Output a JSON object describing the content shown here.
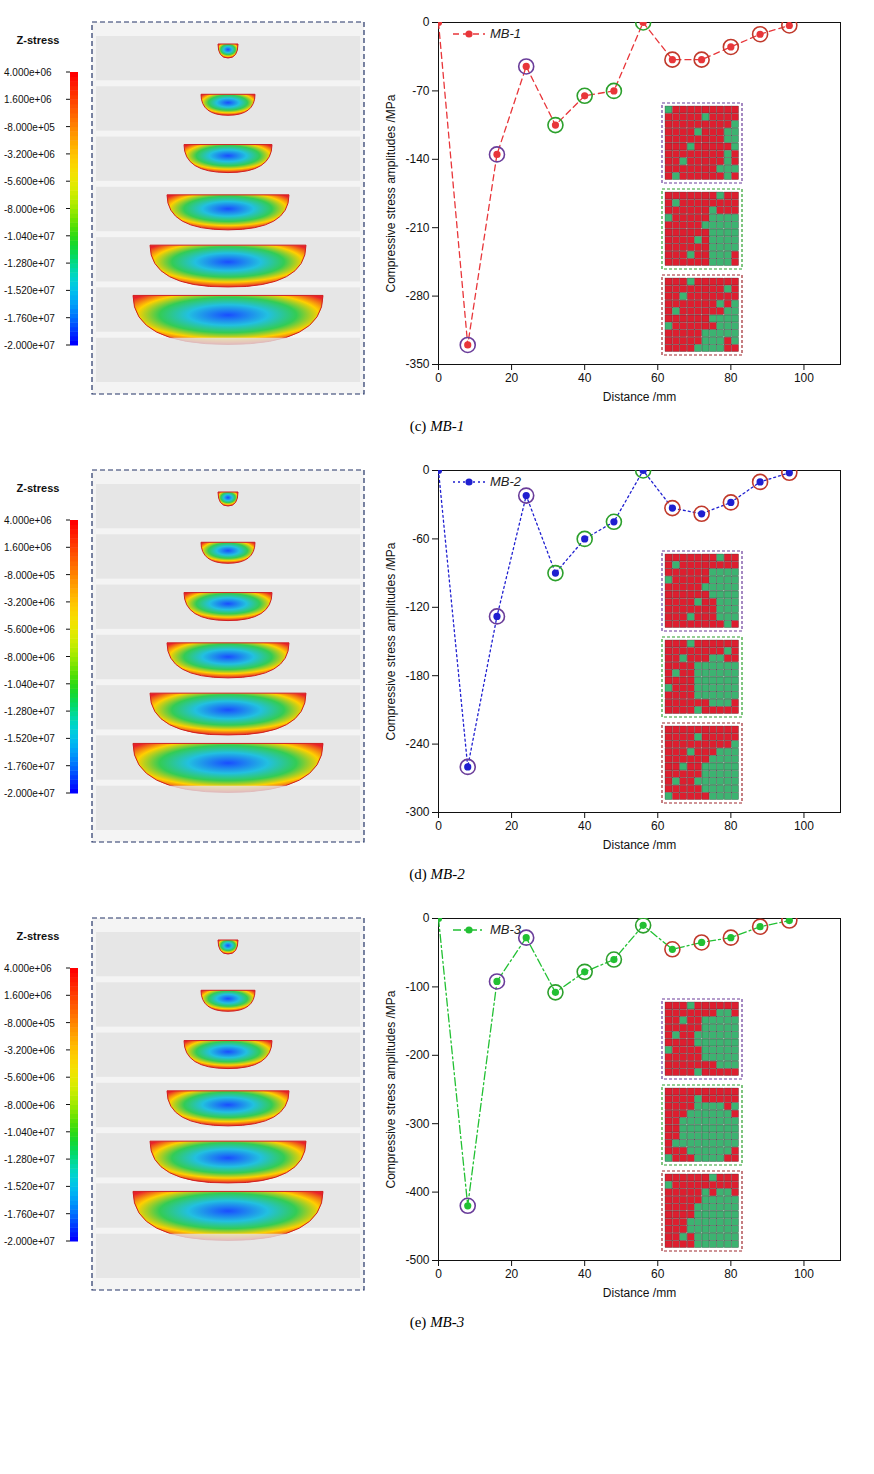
{
  "chart_data": [
    {
      "type": "line",
      "caption": "(c) MB-1",
      "x_label": "Distance /mm",
      "y_label": "Compressive stress amplitudes /MPa",
      "x": [
        0,
        8,
        16,
        24,
        32,
        40,
        48,
        56,
        64,
        72,
        80,
        88,
        96
      ],
      "series": [
        {
          "name": "MB-1",
          "color": "#e8363a",
          "line_style": "dashed",
          "marker": "circle",
          "values": [
            0,
            -330,
            -135,
            -45,
            -105,
            -75,
            -70,
            0,
            -38,
            -38,
            -25,
            -12,
            -3
          ],
          "colors": [
            null,
            "#6a3d9a",
            "#6a3d9a",
            "#6a3d9a",
            "#2ca02c",
            "#2ca02c",
            "#2ca02c",
            "#2ca02c",
            "#c0392b",
            "#c0392b",
            "#c0392b",
            "#c0392b",
            "#c0392b"
          ]
        }
      ],
      "xlim": [
        0,
        110
      ],
      "xticks": [
        0,
        20,
        40,
        60,
        80,
        100
      ],
      "ylim": [
        -350,
        0
      ],
      "yticks": [
        0,
        -70,
        -140,
        -210,
        -280,
        -350
      ],
      "legend": "top-left",
      "colorbar": {
        "title": "Z-stress",
        "ticks": [
          {
            "value": 4000000,
            "label": "4.000e+06"
          },
          {
            "value": 1600000,
            "label": "1.600e+06"
          },
          {
            "value": -800000,
            "label": "-8.000e+05"
          },
          {
            "value": -3200000,
            "label": "-3.200e+06"
          },
          {
            "value": -5600000,
            "label": "-5.600e+06"
          },
          {
            "value": -8000000,
            "label": "-8.000e+06"
          },
          {
            "value": -10400000,
            "label": "-1.040e+07"
          },
          {
            "value": -12800000,
            "label": "-1.280e+07"
          },
          {
            "value": -15200000,
            "label": "-1.520e+07"
          },
          {
            "value": -17600000,
            "label": "-1.760e+07"
          },
          {
            "value": -20000000,
            "label": "-2.000e+07"
          }
        ]
      }
    },
    {
      "type": "line",
      "caption": "(d) MB-2",
      "x_label": "Distance /mm",
      "y_label": "Compressive stress amplitudes /MPa",
      "x": [
        0,
        8,
        16,
        24,
        32,
        40,
        48,
        56,
        64,
        72,
        80,
        88,
        96
      ],
      "series": [
        {
          "name": "MB-2",
          "color": "#1f1fd0",
          "line_style": "dotted",
          "marker": "circle",
          "values": [
            0,
            -260,
            -128,
            -22,
            -90,
            -60,
            -45,
            0,
            -33,
            -38,
            -28,
            -10,
            -2
          ],
          "colors": [
            null,
            "#6a3d9a",
            "#6a3d9a",
            "#6a3d9a",
            "#2ca02c",
            "#2ca02c",
            "#2ca02c",
            "#2ca02c",
            "#c0392b",
            "#c0392b",
            "#c0392b",
            "#c0392b",
            "#c0392b"
          ]
        }
      ],
      "xlim": [
        0,
        110
      ],
      "xticks": [
        0,
        20,
        40,
        60,
        80,
        100
      ],
      "ylim": [
        -300,
        0
      ],
      "yticks": [
        0,
        -60,
        -120,
        -180,
        -240,
        -300
      ],
      "legend": "top-left",
      "colorbar": {
        "title": "Z-stress",
        "ticks": [
          {
            "value": 4000000,
            "label": "4.000e+06"
          },
          {
            "value": 1600000,
            "label": "1.600e+06"
          },
          {
            "value": -800000,
            "label": "-8.000e+05"
          },
          {
            "value": -3200000,
            "label": "-3.200e+06"
          },
          {
            "value": -5600000,
            "label": "-5.600e+06"
          },
          {
            "value": -8000000,
            "label": "-8.000e+06"
          },
          {
            "value": -10400000,
            "label": "-1.040e+07"
          },
          {
            "value": -12800000,
            "label": "-1.280e+07"
          },
          {
            "value": -15200000,
            "label": "-1.520e+07"
          },
          {
            "value": -17600000,
            "label": "-1.760e+07"
          },
          {
            "value": -20000000,
            "label": "-2.000e+07"
          }
        ]
      }
    },
    {
      "type": "line",
      "caption": "(e) MB-3",
      "x_label": "Distance /mm",
      "y_label": "Compressive stress amplitudes /MPa",
      "x": [
        0,
        8,
        16,
        24,
        32,
        40,
        48,
        56,
        64,
        72,
        80,
        88,
        96
      ],
      "series": [
        {
          "name": "MB-3",
          "color": "#22c033",
          "line_style": "dashdot",
          "marker": "circle",
          "values": [
            0,
            -420,
            -92,
            -28,
            -108,
            -78,
            -60,
            -10,
            -45,
            -35,
            -28,
            -12,
            -3
          ],
          "colors": [
            null,
            "#6a3d9a",
            "#6a3d9a",
            "#6a3d9a",
            "#2ca02c",
            "#2ca02c",
            "#2ca02c",
            "#2ca02c",
            "#c0392b",
            "#c0392b",
            "#c0392b",
            "#c0392b",
            "#c0392b"
          ]
        }
      ],
      "xlim": [
        0,
        110
      ],
      "xticks": [
        0,
        20,
        40,
        60,
        80,
        100
      ],
      "ylim": [
        -500,
        0
      ],
      "yticks": [
        0,
        -100,
        -200,
        -300,
        -400,
        -500
      ],
      "legend": "top-left",
      "colorbar": {
        "title": "Z-stress",
        "ticks": [
          {
            "value": 4000000,
            "label": "4.000e+06"
          },
          {
            "value": 1600000,
            "label": "1.600e+06"
          },
          {
            "value": -800000,
            "label": "-8.000e+05"
          },
          {
            "value": -3200000,
            "label": "-3.200e+06"
          },
          {
            "value": -5600000,
            "label": "-5.600e+06"
          },
          {
            "value": -8000000,
            "label": "-8.000e+06"
          },
          {
            "value": -10400000,
            "label": "-1.040e+07"
          },
          {
            "value": -12800000,
            "label": "-1.280e+07"
          },
          {
            "value": -15200000,
            "label": "-1.520e+07"
          },
          {
            "value": -17600000,
            "label": "-1.760e+07"
          },
          {
            "value": -20000000,
            "label": "-2.000e+07"
          }
        ]
      }
    }
  ]
}
